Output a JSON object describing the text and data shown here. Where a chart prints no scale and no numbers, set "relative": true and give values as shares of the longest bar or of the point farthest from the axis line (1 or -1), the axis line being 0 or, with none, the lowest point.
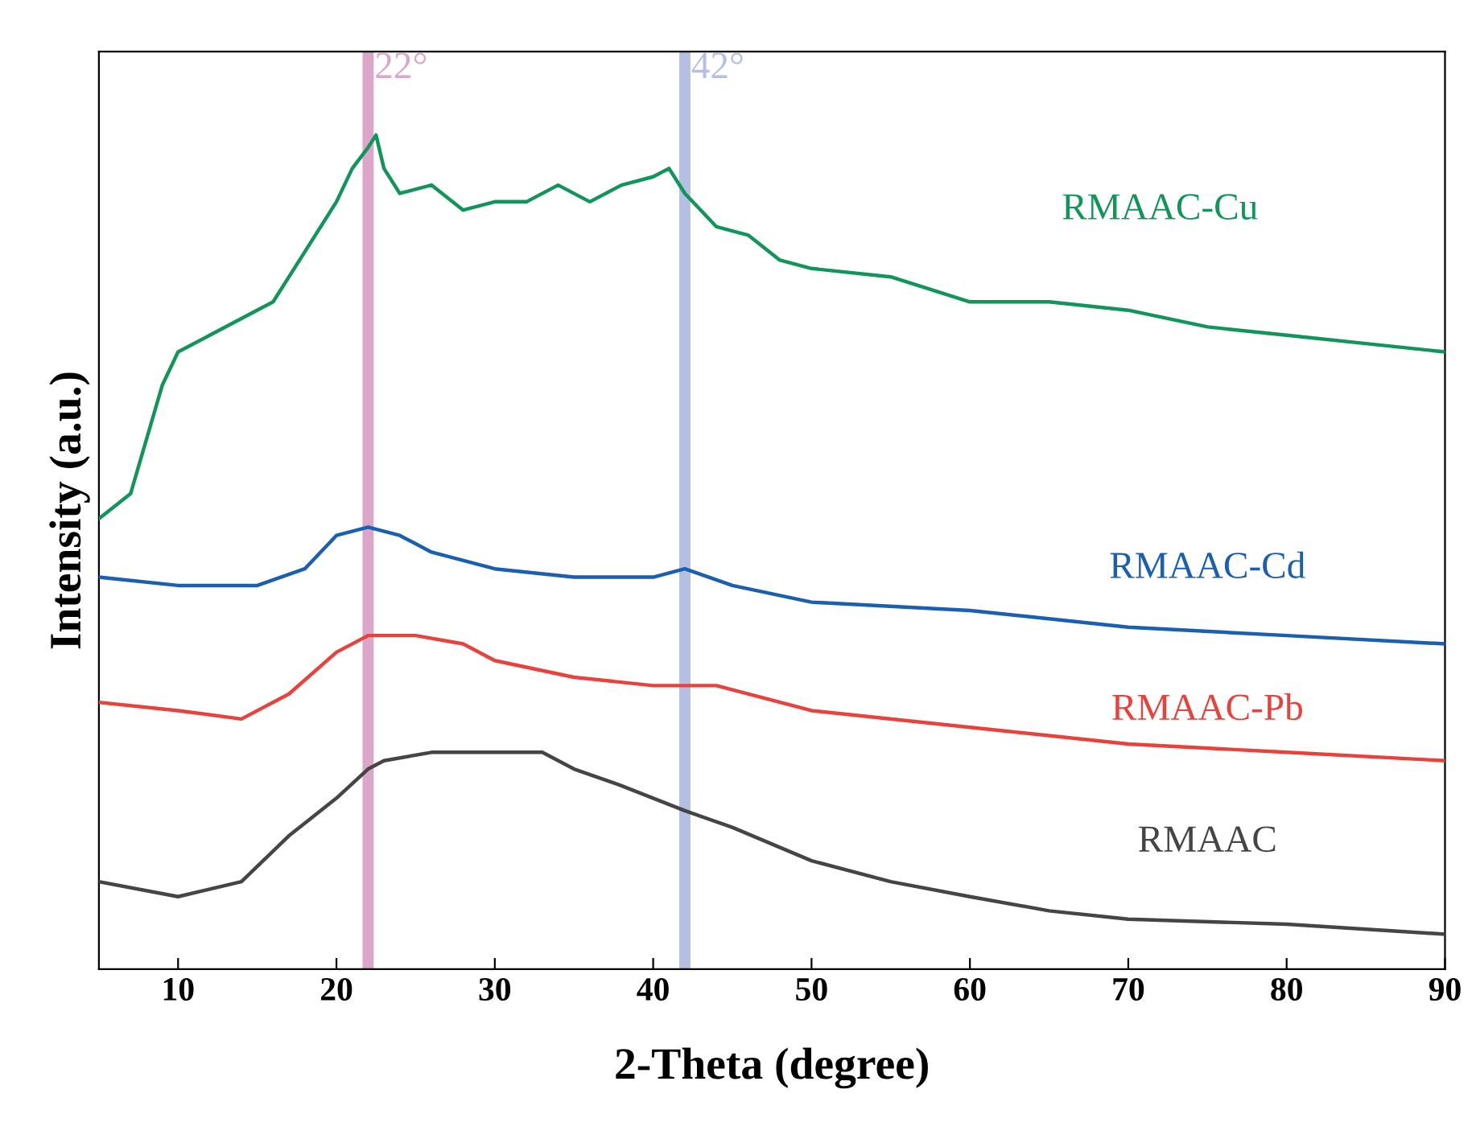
{
  "chart_data": {
    "type": "line",
    "xlabel": "2-Theta (degree)",
    "ylabel": "Intensity (a.u.)",
    "relative": true,
    "xlim": [
      5,
      90
    ],
    "xticks": [
      10,
      20,
      30,
      40,
      50,
      60,
      70,
      80,
      90
    ],
    "grid": false,
    "legend": false,
    "marker": "none",
    "line_style": "solid",
    "series": [
      {
        "name": "RMAAC-Cu",
        "color": "#12955a",
        "x": [
          5,
          7,
          9,
          10,
          12,
          14,
          16,
          18,
          20,
          21,
          22,
          22.5,
          23,
          24,
          26,
          28,
          30,
          32,
          34,
          36,
          38,
          40,
          41,
          42,
          44,
          46,
          48,
          50,
          55,
          60,
          65,
          70,
          75,
          80,
          85,
          90
        ],
        "values": [
          0.54,
          0.57,
          0.7,
          0.74,
          0.76,
          0.78,
          0.8,
          0.86,
          0.92,
          0.96,
          0.985,
          1,
          0.96,
          0.93,
          0.94,
          0.91,
          0.92,
          0.92,
          0.94,
          0.92,
          0.94,
          0.95,
          0.96,
          0.93,
          0.89,
          0.88,
          0.85,
          0.84,
          0.83,
          0.8,
          0.8,
          0.79,
          0.77,
          0.76,
          0.75,
          0.74
        ]
      },
      {
        "name": "RMAAC-Cd",
        "color": "#1a5fb0",
        "x": [
          5,
          10,
          15,
          18,
          20,
          22,
          24,
          26,
          30,
          35,
          40,
          42,
          45,
          50,
          60,
          70,
          80,
          90
        ],
        "values": [
          0.47,
          0.46,
          0.46,
          0.48,
          0.52,
          0.53,
          0.52,
          0.5,
          0.48,
          0.47,
          0.47,
          0.48,
          0.46,
          0.44,
          0.43,
          0.41,
          0.4,
          0.39
        ]
      },
      {
        "name": "RMAAC-Pb",
        "color": "#e8423c",
        "x": [
          5,
          10,
          14,
          17,
          20,
          22,
          25,
          28,
          30,
          35,
          40,
          44,
          50,
          60,
          70,
          80,
          90
        ],
        "values": [
          0.32,
          0.31,
          0.3,
          0.33,
          0.38,
          0.4,
          0.4,
          0.39,
          0.37,
          0.35,
          0.34,
          0.34,
          0.31,
          0.29,
          0.27,
          0.26,
          0.25
        ]
      },
      {
        "name": "RMAAC",
        "color": "#454545",
        "x": [
          5,
          10,
          14,
          17,
          20,
          22,
          23,
          26,
          30,
          33,
          35,
          38,
          42,
          45,
          50,
          55,
          60,
          65,
          70,
          80,
          90
        ],
        "values": [
          0.105,
          0.087,
          0.105,
          0.16,
          0.205,
          0.24,
          0.25,
          0.26,
          0.26,
          0.26,
          0.24,
          0.22,
          0.19,
          0.17,
          0.13,
          0.105,
          0.087,
          0.07,
          0.06,
          0.054,
          0.042
        ]
      }
    ],
    "ref_lines": [
      {
        "axis": "x",
        "value": 22,
        "label": "22°",
        "color": "#dba6c8"
      },
      {
        "axis": "x",
        "value": 42,
        "label": "42°",
        "color": "#b5bfe2"
      }
    ]
  }
}
